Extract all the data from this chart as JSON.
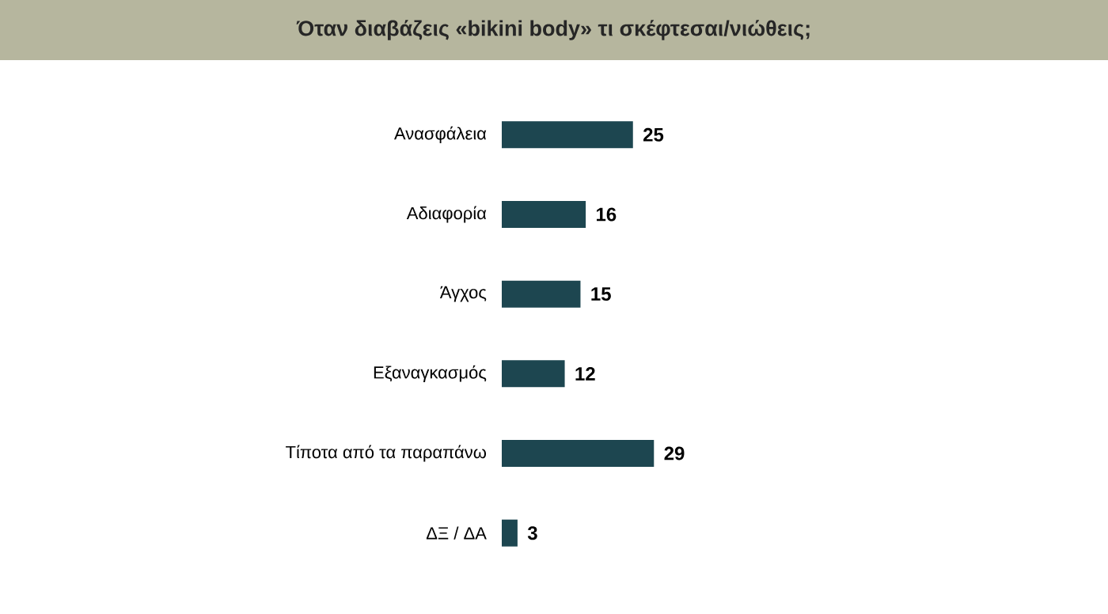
{
  "chart_data": {
    "type": "bar",
    "orientation": "horizontal",
    "title": "Όταν διαβάζεις «bikini body» τι σκέφτεσαι/νιώθεις;",
    "categories": [
      "Ανασφάλεια",
      "Αδιαφορία",
      "Άγχος",
      "Εξαναγκασμός",
      "Τίποτα από τα παραπάνω",
      "ΔΞ / ΔΑ"
    ],
    "values": [
      25,
      16,
      15,
      12,
      29,
      3
    ],
    "color": "#1d4650",
    "data_labels": true
  }
}
